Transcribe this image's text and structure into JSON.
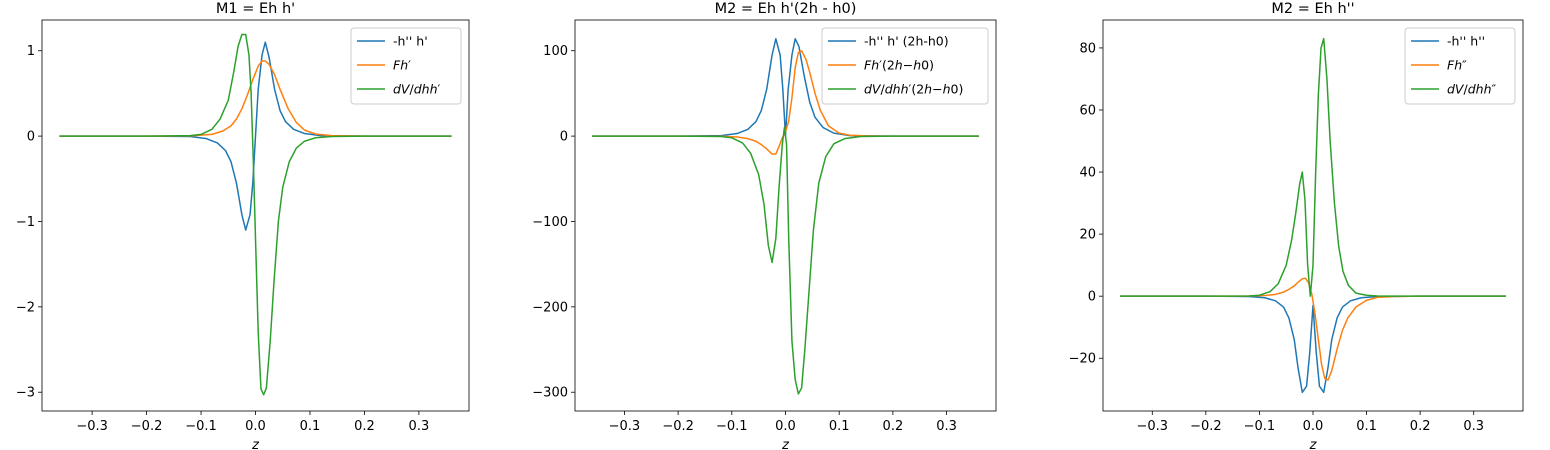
{
  "chart_data": [
    {
      "type": "line",
      "title": "M1 = Eh h'",
      "xlabel": "z",
      "ylabel": "",
      "xlim": [
        -0.392,
        0.392
      ],
      "ylim": [
        -3.22,
        1.36
      ],
      "xticks": [
        -0.3,
        -0.2,
        -0.1,
        0.0,
        0.1,
        0.2,
        0.3
      ],
      "xtick_labels": [
        "−0.3",
        "−0.2",
        "−0.1",
        "0.0",
        "0.1",
        "0.2",
        "0.3"
      ],
      "yticks": [
        -3,
        -2,
        -1,
        0,
        1
      ],
      "ytick_labels": [
        "−3",
        "−2",
        "−1",
        "0",
        "1"
      ],
      "legend": "top-right",
      "series": [
        {
          "name": "-h'' h'",
          "color": "#1f77b4",
          "x": [
            -0.36,
            -0.2,
            -0.12,
            -0.09,
            -0.07,
            -0.055,
            -0.045,
            -0.035,
            -0.025,
            -0.018,
            -0.01,
            -0.005,
            0.0,
            0.005,
            0.012,
            0.018,
            0.025,
            0.035,
            0.045,
            0.055,
            0.07,
            0.09,
            0.12,
            0.2,
            0.36
          ],
          "y": [
            0,
            0,
            -0.005,
            -0.03,
            -0.08,
            -0.17,
            -0.3,
            -0.55,
            -0.92,
            -1.1,
            -0.92,
            -0.55,
            0.0,
            0.55,
            0.95,
            1.1,
            0.92,
            0.55,
            0.3,
            0.17,
            0.08,
            0.03,
            0.005,
            0,
            0
          ]
        },
        {
          "name": "$Fh'$",
          "color": "#ff7f0e",
          "x": [
            -0.36,
            -0.2,
            -0.12,
            -0.08,
            -0.06,
            -0.045,
            -0.035,
            -0.025,
            -0.015,
            -0.005,
            0.005,
            0.012,
            0.018,
            0.025,
            0.035,
            0.045,
            0.06,
            0.075,
            0.09,
            0.11,
            0.14,
            0.2,
            0.36
          ],
          "y": [
            0,
            0,
            0.002,
            0.02,
            0.06,
            0.12,
            0.2,
            0.32,
            0.48,
            0.66,
            0.82,
            0.88,
            0.88,
            0.84,
            0.72,
            0.55,
            0.32,
            0.16,
            0.07,
            0.025,
            0.005,
            0,
            0
          ]
        },
        {
          "name": "$dV/dhh'$",
          "color": "#2ca02c",
          "x": [
            -0.36,
            -0.2,
            -0.12,
            -0.1,
            -0.08,
            -0.065,
            -0.05,
            -0.04,
            -0.032,
            -0.025,
            -0.018,
            -0.012,
            -0.008,
            -0.004,
            0.0,
            0.005,
            0.01,
            0.015,
            0.02,
            0.027,
            0.034,
            0.042,
            0.05,
            0.062,
            0.075,
            0.09,
            0.11,
            0.14,
            0.2,
            0.36
          ],
          "y": [
            0,
            0,
            0.005,
            0.02,
            0.08,
            0.2,
            0.42,
            0.75,
            1.05,
            1.19,
            1.19,
            0.95,
            0.5,
            -0.3,
            -1.2,
            -2.3,
            -2.96,
            -3.03,
            -2.95,
            -2.4,
            -1.7,
            -1.0,
            -0.6,
            -0.3,
            -0.14,
            -0.06,
            -0.02,
            -0.005,
            0,
            0
          ]
        }
      ]
    },
    {
      "type": "line",
      "title": "M2 = Eh h'(2h - h0)",
      "xlabel": "z",
      "ylabel": "",
      "xlim": [
        -0.392,
        0.392
      ],
      "ylim": [
        -322,
        136
      ],
      "xticks": [
        -0.3,
        -0.2,
        -0.1,
        0.0,
        0.1,
        0.2,
        0.3
      ],
      "xtick_labels": [
        "−0.3",
        "−0.2",
        "−0.1",
        "0.0",
        "0.1",
        "0.2",
        "0.3"
      ],
      "yticks": [
        -300,
        -200,
        -100,
        0,
        100
      ],
      "ytick_labels": [
        "−300",
        "−200",
        "−100",
        "0",
        "100"
      ],
      "legend": "top-right",
      "series": [
        {
          "name": "-h'' h' (2h-h0)",
          "color": "#1f77b4",
          "x": [
            -0.36,
            -0.2,
            -0.12,
            -0.09,
            -0.07,
            -0.055,
            -0.045,
            -0.035,
            -0.025,
            -0.018,
            -0.01,
            -0.005,
            0.0,
            0.005,
            0.012,
            0.018,
            0.025,
            0.035,
            0.045,
            0.055,
            0.07,
            0.09,
            0.12,
            0.2,
            0.36
          ],
          "y": [
            0,
            0,
            0.5,
            3,
            8,
            17,
            30,
            55,
            95,
            114,
            95,
            55,
            0,
            55,
            95,
            114,
            105,
            70,
            40,
            22,
            10,
            3.5,
            0.5,
            0,
            0
          ]
        },
        {
          "name": "$Fh'(2h-h0)$",
          "color": "#ff7f0e",
          "x": [
            -0.36,
            -0.2,
            -0.12,
            -0.09,
            -0.07,
            -0.055,
            -0.045,
            -0.035,
            -0.025,
            -0.018,
            -0.012,
            -0.006,
            0.0,
            0.006,
            0.012,
            0.018,
            0.024,
            0.03,
            0.038,
            0.045,
            0.055,
            0.065,
            0.08,
            0.1,
            0.12,
            0.15,
            0.2,
            0.36
          ],
          "y": [
            0,
            0,
            -0.2,
            -1,
            -3,
            -6,
            -10,
            -15,
            -21,
            -21,
            -12,
            -2,
            5,
            18,
            45,
            80,
            98,
            100,
            90,
            75,
            50,
            30,
            12,
            3.5,
            1,
            0.2,
            0,
            0
          ]
        },
        {
          "name": "$dV/dhh'(2h-h0)$",
          "color": "#2ca02c",
          "x": [
            -0.36,
            -0.2,
            -0.12,
            -0.1,
            -0.08,
            -0.065,
            -0.05,
            -0.04,
            -0.032,
            -0.025,
            -0.018,
            -0.012,
            -0.006,
            -0.002,
            0.002,
            0.006,
            0.012,
            0.018,
            0.024,
            0.03,
            0.036,
            0.044,
            0.052,
            0.062,
            0.075,
            0.09,
            0.11,
            0.14,
            0.2,
            0.36
          ],
          "y": [
            0,
            0,
            -0.5,
            -2,
            -8,
            -20,
            -45,
            -80,
            -128,
            -148,
            -120,
            -60,
            -10,
            10,
            -10,
            -120,
            -240,
            -285,
            -302,
            -295,
            -250,
            -180,
            -110,
            -55,
            -24,
            -9,
            -3,
            -0.5,
            0,
            0
          ]
        }
      ]
    },
    {
      "type": "line",
      "title": "M2 = Eh h''",
      "xlabel": "z",
      "ylabel": "",
      "xlim": [
        -0.392,
        0.392
      ],
      "ylim": [
        -37,
        89
      ],
      "xticks": [
        -0.3,
        -0.2,
        -0.1,
        0.0,
        0.1,
        0.2,
        0.3
      ],
      "xtick_labels": [
        "−0.3",
        "−0.2",
        "−0.1",
        "0.0",
        "0.1",
        "0.2",
        "0.3"
      ],
      "yticks": [
        -20,
        0,
        20,
        40,
        60,
        80
      ],
      "ytick_labels": [
        "−20",
        "0",
        "20",
        "40",
        "60",
        "80"
      ],
      "legend": "top-right",
      "series": [
        {
          "name": "-h'' h''",
          "color": "#1f77b4",
          "x": [
            -0.36,
            -0.2,
            -0.12,
            -0.09,
            -0.07,
            -0.055,
            -0.045,
            -0.035,
            -0.028,
            -0.02,
            -0.012,
            -0.006,
            0.0,
            0.006,
            0.012,
            0.02,
            0.028,
            0.035,
            0.045,
            0.055,
            0.07,
            0.09,
            0.12,
            0.2,
            0.36
          ],
          "y": [
            0,
            0,
            -0.1,
            -0.5,
            -1.5,
            -3.5,
            -7,
            -14,
            -23,
            -31,
            -29,
            -18,
            -3,
            -18,
            -29,
            -31,
            -23,
            -14,
            -7,
            -3.5,
            -1.5,
            -0.5,
            -0.1,
            0,
            0
          ]
        },
        {
          "name": "$Fh''$",
          "color": "#ff7f0e",
          "x": [
            -0.36,
            -0.2,
            -0.12,
            -0.09,
            -0.07,
            -0.055,
            -0.045,
            -0.035,
            -0.028,
            -0.02,
            -0.014,
            -0.008,
            -0.002,
            0.004,
            0.01,
            0.016,
            0.022,
            0.028,
            0.035,
            0.045,
            0.055,
            0.065,
            0.08,
            0.1,
            0.12,
            0.15,
            0.2,
            0.36
          ],
          "y": [
            0,
            0,
            0.05,
            0.2,
            0.6,
            1.3,
            2.2,
            3.3,
            4.5,
            5.6,
            5.8,
            4.2,
            0.5,
            -6,
            -14,
            -22,
            -26.5,
            -27,
            -24,
            -17,
            -11,
            -7,
            -3.5,
            -1.3,
            -0.4,
            -0.1,
            0,
            0
          ]
        },
        {
          "name": "$dV/dhh''$",
          "color": "#2ca02c",
          "x": [
            -0.36,
            -0.2,
            -0.12,
            -0.1,
            -0.08,
            -0.065,
            -0.05,
            -0.04,
            -0.032,
            -0.025,
            -0.02,
            -0.015,
            -0.01,
            -0.005,
            0.0,
            0.005,
            0.01,
            0.015,
            0.02,
            0.026,
            0.032,
            0.04,
            0.048,
            0.056,
            0.066,
            0.08,
            0.1,
            0.12,
            0.15,
            0.2,
            0.36
          ],
          "y": [
            0,
            0,
            0.05,
            0.3,
            1.5,
            4,
            10,
            18,
            27,
            36,
            40,
            31,
            10,
            0,
            10,
            40,
            65,
            80,
            83,
            70,
            50,
            30,
            16,
            8,
            3.5,
            1,
            0.3,
            0.05,
            0,
            0,
            0
          ]
        }
      ]
    }
  ]
}
